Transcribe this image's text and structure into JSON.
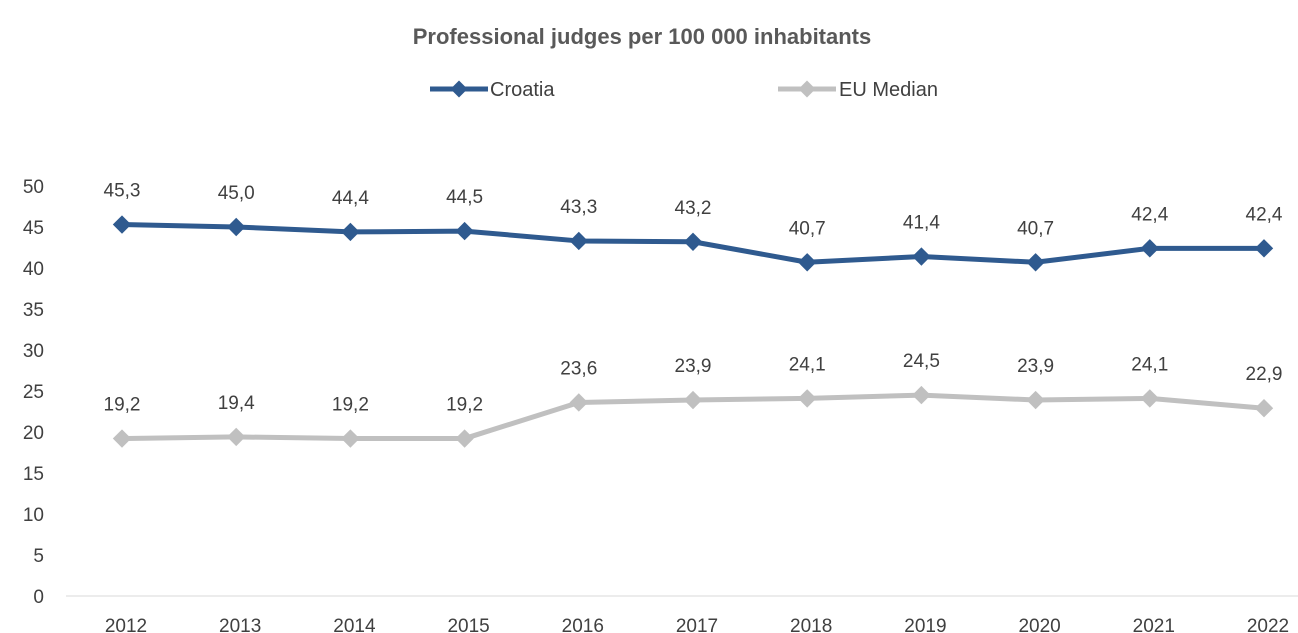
{
  "chart_data": {
    "type": "line",
    "title": "Professional judges per 100 000 inhabitants",
    "categories": [
      "2012",
      "2013",
      "2014",
      "2015",
      "2016",
      "2017",
      "2018",
      "2019",
      "2020",
      "2021",
      "2022"
    ],
    "series": [
      {
        "name": "Croatia",
        "color": "#2f5a8f",
        "values": [
          45.3,
          45.0,
          44.4,
          44.5,
          43.3,
          43.2,
          40.7,
          41.4,
          40.7,
          42.4,
          42.4
        ],
        "labels": [
          "45,3",
          "45,0",
          "44,4",
          "44,5",
          "43,3",
          "43,2",
          "40,7",
          "41,4",
          "40,7",
          "42,4",
          "42,4"
        ]
      },
      {
        "name": "EU Median",
        "color": "#c0c0c0",
        "values": [
          19.2,
          19.4,
          19.2,
          19.2,
          23.6,
          23.9,
          24.1,
          24.5,
          23.9,
          24.1,
          22.9
        ],
        "labels": [
          "19,2",
          "19,4",
          "19,2",
          "19,2",
          "23,6",
          "23,9",
          "24,1",
          "24,5",
          "23,9",
          "24,1",
          "22,9"
        ]
      }
    ],
    "y_ticks": [
      "0",
      "5",
      "10",
      "15",
      "20",
      "25",
      "30",
      "35",
      "40",
      "45",
      "50"
    ],
    "ylim": [
      0,
      50
    ],
    "legend_position": "top",
    "grid": false
  }
}
